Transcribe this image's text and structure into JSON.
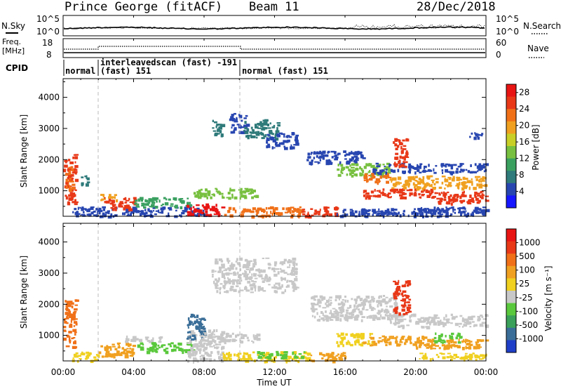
{
  "header": {
    "station": "Prince George (fitACF)",
    "beam": "Beam 11",
    "date": "28/Dec/2018"
  },
  "noise_panel": {
    "left_label": "N.Sky",
    "left_ticks": [
      "10^5",
      "10^0"
    ],
    "right_ticks": [
      "10^5",
      "10^0"
    ],
    "right_label": "N.Search"
  },
  "freq_panel": {
    "left_label_1": "Freq.",
    "left_label_2": "[MHz]",
    "left_ticks": [
      "18",
      "8"
    ],
    "right_ticks": [
      "60",
      "0"
    ],
    "right_label": "Nave"
  },
  "cpid_panel": {
    "label": "CPID",
    "segments": [
      {
        "line1": "normal",
        "line2": ""
      },
      {
        "line1": "interleavedscan (fast) -191",
        "line2": "(fast) 151"
      },
      {
        "line1": "normal (fast) 151",
        "line2": ""
      }
    ]
  },
  "chart_data": [
    {
      "type": "heatmap",
      "quantity": "power",
      "ylabel": "Slant Range [km]",
      "yticks": [
        1000,
        2000,
        3000,
        4000
      ],
      "ylim": [
        180,
        4600
      ],
      "xlim_hours": [
        0,
        24
      ],
      "colorbar": {
        "label": "Power [dB]",
        "ticks": [
          "4",
          "8",
          "12",
          "16",
          "20",
          "24",
          "28"
        ],
        "colors": [
          "#1616ff",
          "#2846b0",
          "#2f7a7a",
          "#3aa060",
          "#78c040",
          "#c8d028",
          "#f0a020",
          "#f07018",
          "#e83818",
          "#e81414"
        ]
      },
      "regions": [
        {
          "t0": 0.0,
          "t1": 0.7,
          "r0": 600,
          "r1": 2200,
          "color": "#e83818"
        },
        {
          "t0": 0.1,
          "t1": 0.5,
          "r0": 1000,
          "r1": 1800,
          "color": "#f07018"
        },
        {
          "t0": 1.0,
          "t1": 1.4,
          "r0": 1100,
          "r1": 1500,
          "color": "#2f7a7a"
        },
        {
          "t0": 0.5,
          "t1": 8.0,
          "r0": 200,
          "r1": 500,
          "color": "#2846b0"
        },
        {
          "t0": 2.3,
          "t1": 4.0,
          "r0": 400,
          "r1": 800,
          "color": "#e83818"
        },
        {
          "t0": 2.0,
          "t1": 3.0,
          "r0": 700,
          "r1": 900,
          "color": "#f0a020"
        },
        {
          "t0": 4.0,
          "t1": 7.2,
          "r0": 500,
          "r1": 800,
          "color": "#3aa060"
        },
        {
          "t0": 7.0,
          "t1": 9.0,
          "r0": 200,
          "r1": 600,
          "color": "#e81414"
        },
        {
          "t0": 7.4,
          "t1": 11.0,
          "r0": 800,
          "r1": 1100,
          "color": "#78c040"
        },
        {
          "t0": 9.0,
          "t1": 13.5,
          "r0": 200,
          "r1": 500,
          "color": "#f07018"
        },
        {
          "t0": 13.5,
          "t1": 15.5,
          "r0": 200,
          "r1": 500,
          "color": "#e83818"
        },
        {
          "t0": 15.5,
          "t1": 24.0,
          "r0": 200,
          "r1": 450,
          "color": "#2846b0"
        },
        {
          "t0": 8.4,
          "t1": 9.0,
          "r0": 2800,
          "r1": 3300,
          "color": "#2f7a7a"
        },
        {
          "t0": 9.4,
          "t1": 10.4,
          "r0": 2900,
          "r1": 3500,
          "color": "#2846b0"
        },
        {
          "t0": 10.2,
          "t1": 12.2,
          "r0": 2700,
          "r1": 3300,
          "color": "#2f7a7a"
        },
        {
          "t0": 11.5,
          "t1": 13.2,
          "r0": 2400,
          "r1": 2900,
          "color": "#2846b0"
        },
        {
          "t0": 13.8,
          "t1": 17.0,
          "r0": 1900,
          "r1": 2300,
          "color": "#2846b0"
        },
        {
          "t0": 15.5,
          "t1": 18.5,
          "r0": 1500,
          "r1": 1900,
          "color": "#78c040"
        },
        {
          "t0": 17.0,
          "t1": 18.5,
          "r0": 1300,
          "r1": 1600,
          "color": "#f07018"
        },
        {
          "t0": 17.0,
          "t1": 21.0,
          "r0": 800,
          "r1": 1100,
          "color": "#e83818"
        },
        {
          "t0": 17.5,
          "t1": 24.0,
          "r0": 1600,
          "r1": 1900,
          "color": "#2846b0"
        },
        {
          "t0": 18.5,
          "t1": 24.0,
          "r0": 1100,
          "r1": 1500,
          "color": "#f0a020"
        },
        {
          "t0": 18.7,
          "t1": 19.5,
          "r0": 1800,
          "r1": 2700,
          "color": "#e83818"
        },
        {
          "t0": 21.0,
          "t1": 24.0,
          "r0": 600,
          "r1": 1000,
          "color": "#e83818"
        },
        {
          "t0": 20.0,
          "t1": 24.0,
          "r0": 250,
          "r1": 500,
          "color": "#2846b0"
        },
        {
          "t0": 23.0,
          "t1": 24.0,
          "r0": 2700,
          "r1": 2900,
          "color": "#2846b0"
        }
      ]
    },
    {
      "type": "heatmap",
      "quantity": "velocity",
      "ylabel": "Slant Range [km]",
      "yticks": [
        1000,
        2000,
        3000,
        4000
      ],
      "ylim": [
        180,
        4600
      ],
      "xlim_hours": [
        0,
        24
      ],
      "xticks": [
        "00:00",
        "04:00",
        "08:00",
        "12:00",
        "16:00",
        "20:00",
        "00:00"
      ],
      "xlabel": "Time UT",
      "colorbar": {
        "label": "Velocity [m s⁻¹]",
        "ticks": [
          "1000",
          "500",
          "100",
          "25",
          "-25",
          "-100",
          "-500",
          "-1000"
        ],
        "colors": [
          "#1f3fc8",
          "#3a6e98",
          "#3aa05a",
          "#5ac83c",
          "#c8c8c8",
          "#f0d020",
          "#f0a020",
          "#f07018",
          "#e83818",
          "#e81414"
        ]
      },
      "regions": [
        {
          "t0": 0.0,
          "t1": 0.7,
          "r0": 600,
          "r1": 2200,
          "color": "#f07018"
        },
        {
          "t0": 0.5,
          "t1": 2.0,
          "r0": 200,
          "r1": 500,
          "color": "#f0d020"
        },
        {
          "t0": 2.0,
          "t1": 4.0,
          "r0": 300,
          "r1": 800,
          "color": "#f0a020"
        },
        {
          "t0": 3.5,
          "t1": 5.5,
          "r0": 800,
          "r1": 1000,
          "color": "#c8c8c8"
        },
        {
          "t0": 4.2,
          "t1": 7.3,
          "r0": 500,
          "r1": 800,
          "color": "#5ac83c"
        },
        {
          "t0": 7.0,
          "t1": 9.0,
          "r0": 200,
          "r1": 1200,
          "color": "#c8c8c8"
        },
        {
          "t0": 7.0,
          "t1": 8.0,
          "r0": 900,
          "r1": 1700,
          "color": "#3a6e98"
        },
        {
          "t0": 7.8,
          "t1": 11.0,
          "r0": 800,
          "r1": 1100,
          "color": "#c8c8c8"
        },
        {
          "t0": 9.0,
          "t1": 14.0,
          "r0": 200,
          "r1": 500,
          "color": "#f0d020"
        },
        {
          "t0": 11.0,
          "t1": 14.0,
          "r0": 300,
          "r1": 500,
          "color": "#5ac83c"
        },
        {
          "t0": 14.0,
          "t1": 16.0,
          "r0": 200,
          "r1": 500,
          "color": "#f0a020"
        },
        {
          "t0": 8.4,
          "t1": 13.2,
          "r0": 2400,
          "r1": 3500,
          "color": "#c8c8c8"
        },
        {
          "t0": 14.0,
          "t1": 19.0,
          "r0": 1500,
          "r1": 2300,
          "color": "#c8c8c8"
        },
        {
          "t0": 15.5,
          "t1": 17.5,
          "r0": 700,
          "r1": 1100,
          "color": "#f0d020"
        },
        {
          "t0": 17.0,
          "t1": 21.0,
          "r0": 700,
          "r1": 1000,
          "color": "#f0a020"
        },
        {
          "t0": 18.5,
          "t1": 24.0,
          "r0": 1300,
          "r1": 1700,
          "color": "#c8c8c8"
        },
        {
          "t0": 18.7,
          "t1": 19.6,
          "r0": 1700,
          "r1": 2800,
          "color": "#e83818"
        },
        {
          "t0": 20.0,
          "t1": 24.0,
          "r0": 600,
          "r1": 900,
          "color": "#f0a020"
        },
        {
          "t0": 20.0,
          "t1": 24.0,
          "r0": 250,
          "r1": 450,
          "color": "#f0d020"
        },
        {
          "t0": 21.0,
          "t1": 22.5,
          "r0": 800,
          "r1": 1100,
          "color": "#5ac83c"
        }
      ]
    }
  ]
}
